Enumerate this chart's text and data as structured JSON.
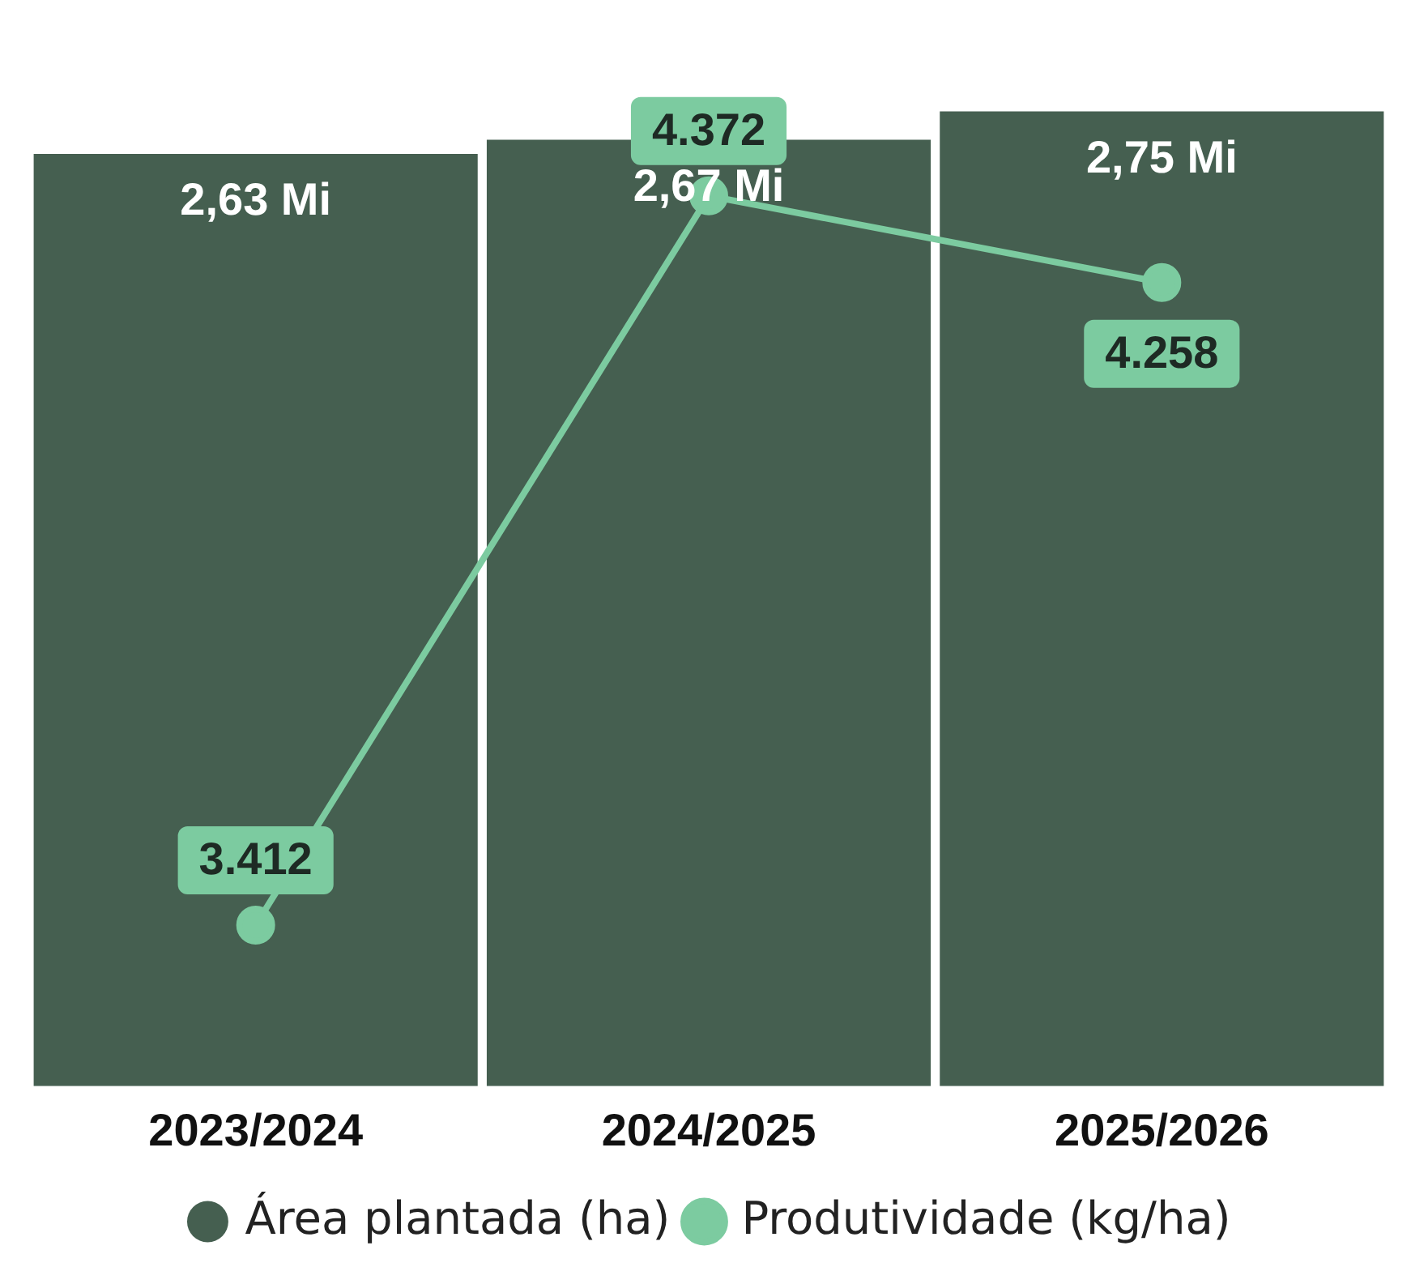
{
  "chart_data": {
    "type": "bar",
    "categories": [
      "2023/2024",
      "2024/2025",
      "2025/2026"
    ],
    "series": [
      {
        "name": "Área plantada (ha)",
        "color": "#455f50",
        "values": [
          2.63,
          2.67,
          2.75
        ],
        "value_labels": [
          "2,63 Mi",
          "2,67 Mi",
          "2,75 Mi"
        ]
      },
      {
        "name": "Produtividade (kg/ha)",
        "type": "line",
        "axis": "y2",
        "color": "#7ccba0",
        "marker": "circle",
        "values": [
          3412,
          4372,
          4258
        ],
        "value_labels": [
          "3.412",
          "4.372",
          "4.258"
        ]
      }
    ],
    "tick_labels": "x",
    "grid": false,
    "legend": "bottom"
  }
}
